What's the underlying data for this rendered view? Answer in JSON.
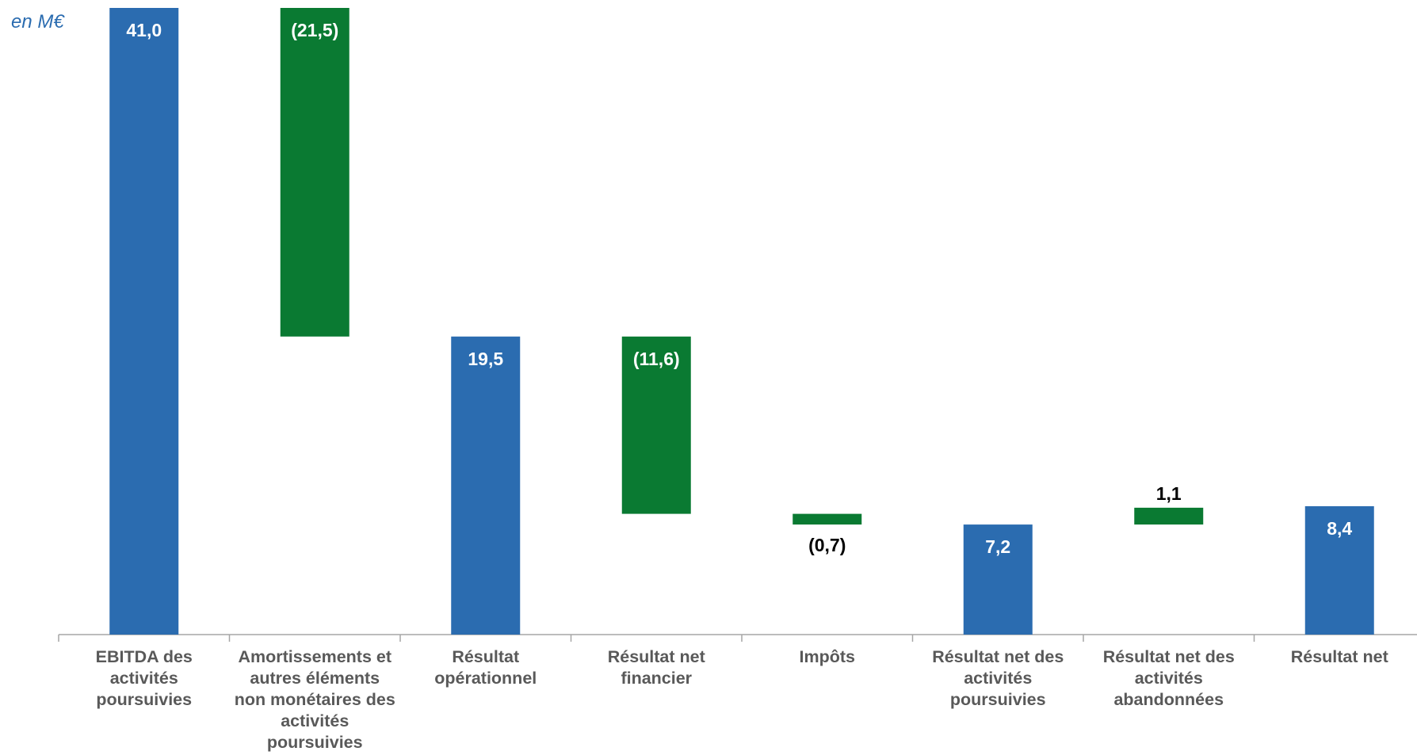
{
  "chart_data": {
    "type": "waterfall",
    "unit_label": "en M€",
    "categories": [
      "EBITDA des activités poursuivies",
      "Amortissements et autres éléments non monétaires des activités poursuivies",
      "Résultat opérationnel",
      "Résultat net financier",
      "Impôts",
      "Résultat net des activités poursuivies",
      "Résultat net des activités abandonnées",
      "Résultat net"
    ],
    "values": [
      41.0,
      -21.5,
      19.5,
      -11.6,
      -0.7,
      7.2,
      1.1,
      8.4
    ],
    "value_labels": [
      "41,0",
      "(21,5)",
      "19,5",
      "(11,6)",
      "(0,7)",
      "7,2",
      "1,1",
      "8,4"
    ],
    "measure": [
      "absolute",
      "relative",
      "absolute",
      "relative",
      "relative",
      "absolute",
      "relative",
      "absolute"
    ],
    "colors": {
      "absolute": "#2b6cb0",
      "relative": "#0a7a32"
    }
  }
}
